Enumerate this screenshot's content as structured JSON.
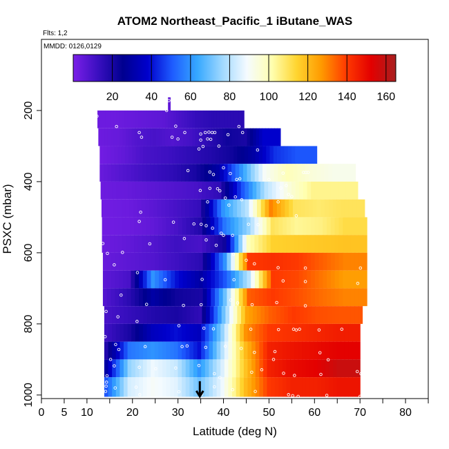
{
  "chart_data": {
    "type": "heatmap",
    "title": "ATOM2 Northeast_Pacific_1 iButane_WAS",
    "annotations": {
      "flights": "Flts: 1,2",
      "dates": "MMDD: 0126,0129"
    },
    "xlabel": "Latitude (deg N)",
    "ylabel": "PSXC (mbar)",
    "xlim": [
      0,
      85
    ],
    "ylim": [
      1010,
      0
    ],
    "x_ticks": [
      0,
      5,
      10,
      20,
      30,
      40,
      50,
      60,
      70,
      80
    ],
    "x_minor_ticks": [
      15,
      25,
      35,
      45,
      55,
      65,
      75,
      85
    ],
    "y_ticks": [
      200,
      400,
      600,
      800,
      1000
    ],
    "colorbar": {
      "range": [
        0,
        165
      ],
      "ticks": [
        20,
        40,
        60,
        80,
        100,
        120,
        140,
        160
      ],
      "palette": [
        "#7B1FE8",
        "#3A0FC0",
        "#00008F",
        "#0000CC",
        "#1E5CFF",
        "#36A8FF",
        "#9FD8FF",
        "#F5FBFF",
        "#FFFFB0",
        "#FFD530",
        "#FF9A00",
        "#FF3A00",
        "#E30000",
        "#A81F1F"
      ]
    },
    "arrow_marker": {
      "latitude": 34.8,
      "pressure": 1000
    },
    "rows": [
      {
        "pressure": 175,
        "lat_min": 27.8,
        "lat_max": 28.3,
        "values": [
          5
        ]
      },
      {
        "pressure": 225,
        "lat_min": 12.3,
        "lat_max": 44.5,
        "values": [
          3,
          3,
          4,
          5,
          6,
          10,
          14,
          16,
          16
        ]
      },
      {
        "pressure": 275,
        "lat_min": 12.5,
        "lat_max": 52.5,
        "values": [
          3,
          4,
          8,
          10,
          8,
          11,
          16,
          22,
          20,
          38
        ]
      },
      {
        "pressure": 325,
        "lat_min": 12.8,
        "lat_max": 60.5,
        "values": [
          2,
          5,
          10,
          12,
          15,
          18,
          22,
          30,
          45,
          50
        ]
      },
      {
        "pressure": 375,
        "lat_min": 12.8,
        "lat_max": 69.0,
        "values": [
          4,
          8,
          12,
          15,
          20,
          30,
          60,
          90,
          100,
          95,
          92
        ]
      },
      {
        "pressure": 425,
        "lat_min": 13.0,
        "lat_max": 69.5,
        "values": [
          3,
          4,
          6,
          8,
          10,
          15,
          50,
          80,
          95,
          105,
          105
        ]
      },
      {
        "pressure": 475,
        "lat_min": 13.2,
        "lat_max": 71.0,
        "values": [
          2,
          3,
          6,
          10,
          14,
          60,
          80,
          130,
          110,
          108,
          110
        ]
      },
      {
        "pressure": 525,
        "lat_min": 13.3,
        "lat_max": 71.5,
        "values": [
          2,
          3,
          5,
          10,
          18,
          55,
          75,
          110,
          104,
          106,
          112
        ]
      },
      {
        "pressure": 575,
        "lat_min": 13.3,
        "lat_max": 71.5,
        "values": [
          3,
          5,
          8,
          12,
          10,
          22,
          100,
          115,
          116,
          117,
          118
        ]
      },
      {
        "pressure": 625,
        "lat_min": 13.5,
        "lat_max": 71.5,
        "values": [
          4,
          6,
          8,
          12,
          16,
          60,
          140,
          142,
          140,
          135,
          130
        ]
      },
      {
        "pressure": 675,
        "lat_min": 13.5,
        "lat_max": 71.5,
        "values": [
          6,
          10,
          60,
          40,
          30,
          50,
          80,
          140,
          138,
          132,
          126
        ]
      },
      {
        "pressure": 725,
        "lat_min": 13.5,
        "lat_max": 71.5,
        "values": [
          8,
          16,
          30,
          22,
          20,
          70,
          135,
          140,
          137,
          133,
          130
        ]
      },
      {
        "pressure": 775,
        "lat_min": 13.8,
        "lat_max": 70.5,
        "values": [
          10,
          14,
          18,
          20,
          15,
          70,
          125,
          135,
          140,
          137,
          136
        ]
      },
      {
        "pressure": 825,
        "lat_min": 13.8,
        "lat_max": 70.0,
        "values": [
          12,
          20,
          35,
          40,
          35,
          75,
          128,
          140,
          142,
          144,
          146
        ]
      },
      {
        "pressure": 875,
        "lat_min": 13.8,
        "lat_max": 70.0,
        "values": [
          18,
          55,
          60,
          55,
          40,
          80,
          120,
          145,
          148,
          150,
          152
        ]
      },
      {
        "pressure": 925,
        "lat_min": 13.8,
        "lat_max": 70.0,
        "values": [
          30,
          75,
          88,
          82,
          60,
          85,
          118,
          145,
          150,
          152,
          158
        ]
      },
      {
        "pressure": 975,
        "lat_min": 13.8,
        "lat_max": 70.0,
        "values": [
          50,
          84,
          90,
          86,
          70,
          88,
          120,
          140,
          145,
          145,
          148
        ]
      }
    ],
    "points": [
      [
        28.0,
        172
      ],
      [
        27.5,
        200
      ],
      [
        12.2,
        216
      ],
      [
        16.5,
        245
      ],
      [
        29.5,
        244
      ],
      [
        31.5,
        262
      ],
      [
        35.0,
        266
      ],
      [
        36.0,
        262
      ],
      [
        36.8,
        261
      ],
      [
        37.5,
        262
      ],
      [
        38.1,
        262
      ],
      [
        41.0,
        268
      ],
      [
        43.4,
        245
      ],
      [
        44.2,
        262
      ],
      [
        21.5,
        262
      ],
      [
        22.0,
        275
      ],
      [
        28.7,
        275
      ],
      [
        30.0,
        280
      ],
      [
        35.0,
        283
      ],
      [
        36.5,
        280
      ],
      [
        37.2,
        281
      ],
      [
        34.6,
        308
      ],
      [
        35.5,
        301
      ],
      [
        39.0,
        300
      ],
      [
        47.5,
        311
      ],
      [
        53.1,
        376
      ],
      [
        57.6,
        374
      ],
      [
        58.1,
        374
      ],
      [
        58.6,
        374
      ],
      [
        32.2,
        369
      ],
      [
        37.0,
        373
      ],
      [
        37.8,
        380
      ],
      [
        40.0,
        361
      ],
      [
        41.5,
        377
      ],
      [
        42.9,
        394
      ],
      [
        43.6,
        392
      ],
      [
        50.0,
        394
      ],
      [
        34.9,
        425
      ],
      [
        37.0,
        419
      ],
      [
        38.7,
        420
      ],
      [
        39.2,
        426
      ],
      [
        36.5,
        457
      ],
      [
        40.4,
        446
      ],
      [
        42.6,
        443
      ],
      [
        44.0,
        451
      ],
      [
        52.6,
        418
      ],
      [
        53.8,
        411
      ],
      [
        54.3,
        436
      ],
      [
        55.0,
        442
      ],
      [
        52.0,
        457
      ],
      [
        41.2,
        466
      ],
      [
        56.0,
        496
      ],
      [
        21.8,
        486
      ],
      [
        21.5,
        512
      ],
      [
        29.0,
        514
      ],
      [
        33.5,
        519
      ],
      [
        35.1,
        520
      ],
      [
        36.2,
        524
      ],
      [
        37.6,
        531
      ],
      [
        39.5,
        545
      ],
      [
        40.0,
        551
      ],
      [
        42.0,
        551
      ],
      [
        45.5,
        520
      ],
      [
        47.6,
        521
      ],
      [
        13.5,
        574
      ],
      [
        14.5,
        602
      ],
      [
        17.8,
        599
      ],
      [
        23.8,
        575
      ],
      [
        31.4,
        560
      ],
      [
        36.2,
        564
      ],
      [
        38.4,
        579
      ],
      [
        42.2,
        604
      ],
      [
        45.0,
        621
      ],
      [
        46.8,
        631
      ],
      [
        52.0,
        642
      ],
      [
        58.0,
        643
      ],
      [
        70.1,
        643
      ],
      [
        16.0,
        634
      ],
      [
        21.1,
        656
      ],
      [
        27.2,
        676
      ],
      [
        35.3,
        675
      ],
      [
        42.3,
        676
      ],
      [
        53.1,
        679
      ],
      [
        58.0,
        681
      ],
      [
        69.5,
        686
      ],
      [
        17.5,
        719
      ],
      [
        23.1,
        745
      ],
      [
        31.2,
        748
      ],
      [
        35.1,
        746
      ],
      [
        41.6,
        733
      ],
      [
        43.1,
        741
      ],
      [
        46.3,
        746
      ],
      [
        51.7,
        740
      ],
      [
        58.0,
        749
      ],
      [
        14.2,
        765
      ],
      [
        16.8,
        780
      ],
      [
        21.0,
        793
      ],
      [
        30.2,
        805
      ],
      [
        35.7,
        812
      ],
      [
        37.8,
        814
      ],
      [
        46.0,
        815
      ],
      [
        52.1,
        816
      ],
      [
        55.4,
        815
      ],
      [
        56.0,
        817
      ],
      [
        56.7,
        815
      ],
      [
        61.0,
        817
      ],
      [
        66.0,
        815
      ],
      [
        14.0,
        836
      ],
      [
        16.3,
        858
      ],
      [
        17.0,
        872
      ],
      [
        22.8,
        864
      ],
      [
        30.9,
        864
      ],
      [
        32.0,
        862
      ],
      [
        36.1,
        866
      ],
      [
        40.4,
        863
      ],
      [
        43.9,
        869
      ],
      [
        46.8,
        880
      ],
      [
        51.3,
        878
      ],
      [
        51.0,
        900
      ],
      [
        61.2,
        881
      ],
      [
        63.0,
        901
      ],
      [
        15.2,
        900
      ],
      [
        16.0,
        918
      ],
      [
        21.5,
        922
      ],
      [
        25.1,
        926
      ],
      [
        29.5,
        924
      ],
      [
        34.6,
        917
      ],
      [
        38.0,
        940
      ],
      [
        39.2,
        951
      ],
      [
        46.2,
        936
      ],
      [
        48.4,
        929
      ],
      [
        53.2,
        939
      ],
      [
        55.6,
        945
      ],
      [
        61.4,
        942
      ],
      [
        69.4,
        934
      ],
      [
        70.2,
        940
      ],
      [
        14.4,
        946
      ],
      [
        14.3,
        964
      ],
      [
        14.2,
        975
      ],
      [
        14.1,
        990
      ],
      [
        16.2,
        980
      ],
      [
        20.8,
        978
      ],
      [
        21.6,
        999
      ],
      [
        30.2,
        991
      ],
      [
        35.2,
        998
      ],
      [
        38.0,
        977
      ],
      [
        42.0,
        985
      ],
      [
        47.0,
        990
      ],
      [
        54.3,
        999
      ],
      [
        55.2,
        1002
      ],
      [
        56.4,
        1004
      ],
      [
        62.7,
        1001
      ],
      [
        70.0,
        1004
      ]
    ]
  }
}
